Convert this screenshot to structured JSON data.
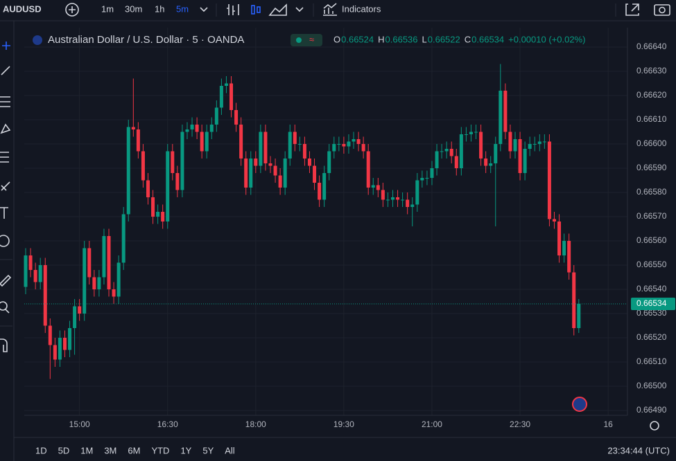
{
  "toolbar": {
    "symbol": "AUDUSD",
    "intervals": [
      "1m",
      "30m",
      "1h",
      "5m"
    ],
    "indicators": "Indicators"
  },
  "chart_data": {
    "type": "candlestick",
    "title": "Australian Dollar / U.S. Dollar · 5 · OANDA",
    "ohlc_legend": [
      {
        "key": "O",
        "value": "0.66524"
      },
      {
        "key": "H",
        "value": "0.66536"
      },
      {
        "key": "L",
        "value": "0.66522"
      },
      {
        "key": "C",
        "value": "0.66534"
      }
    ],
    "change": "+0.00010 (+0.02%)",
    "last_price": {
      "value": 0.66534,
      "label": "0.66534"
    },
    "up_color": "#089981",
    "down_color": "#f23645",
    "grid": true,
    "x": [
      "14:05",
      "14:10",
      "14:15",
      "14:20",
      "14:25",
      "14:30",
      "14:35",
      "14:40",
      "14:45",
      "14:50",
      "14:55",
      "15:00",
      "15:05",
      "15:10",
      "15:15",
      "15:20",
      "15:25",
      "15:30",
      "15:35",
      "15:40",
      "15:45",
      "15:50",
      "15:55",
      "16:00",
      "16:05",
      "16:10",
      "16:15",
      "16:20",
      "16:25",
      "16:30",
      "16:35",
      "16:40",
      "16:45",
      "16:50",
      "16:55",
      "17:00",
      "17:05",
      "17:10",
      "17:15",
      "17:20",
      "17:25",
      "17:30",
      "17:35",
      "17:40",
      "17:45",
      "17:50",
      "17:55",
      "18:00",
      "18:05",
      "18:10",
      "18:15",
      "18:20",
      "18:25",
      "18:30",
      "18:35",
      "18:40",
      "18:45",
      "18:50",
      "18:55",
      "19:00",
      "19:05",
      "19:10",
      "19:15",
      "19:20",
      "19:25",
      "19:30",
      "19:35",
      "19:40",
      "19:45",
      "19:50",
      "19:55",
      "20:00",
      "20:05",
      "20:10",
      "20:15",
      "20:20",
      "20:25",
      "20:30",
      "20:35",
      "20:40",
      "20:45",
      "20:50",
      "20:55",
      "21:00",
      "21:05",
      "21:10",
      "21:15",
      "21:20",
      "21:25",
      "21:30",
      "21:35",
      "21:40",
      "21:45",
      "21:50",
      "21:55",
      "22:00",
      "22:05",
      "22:10",
      "22:15",
      "22:20",
      "22:25",
      "22:30",
      "22:35",
      "22:40",
      "22:45",
      "22:50",
      "22:55",
      "23:00",
      "23:05",
      "23:10",
      "23:15",
      "23:20",
      "23:25",
      "23:30"
    ],
    "open": [
      0.66541,
      0.66554,
      0.66548,
      0.66543,
      0.6655,
      0.66525,
      0.66517,
      0.66511,
      0.6652,
      0.66515,
      0.66524,
      0.66533,
      0.6653,
      0.66557,
      0.66545,
      0.6654,
      0.66545,
      0.66562,
      0.6654,
      0.66537,
      0.66551,
      0.66571,
      0.66607,
      0.66606,
      0.66597,
      0.66585,
      0.66578,
      0.6657,
      0.66572,
      0.66568,
      0.66597,
      0.66588,
      0.66581,
      0.66605,
      0.66606,
      0.66608,
      0.66605,
      0.66597,
      0.66605,
      0.66608,
      0.66615,
      0.66624,
      0.66625,
      0.66614,
      0.66608,
      0.66594,
      0.66582,
      0.66594,
      0.66591,
      0.66605,
      0.66592,
      0.66591,
      0.66587,
      0.66582,
      0.66594,
      0.66605,
      0.666,
      0.666,
      0.66594,
      0.66591,
      0.66584,
      0.66577,
      0.66588,
      0.66597,
      0.666,
      0.666,
      0.66599,
      0.66601,
      0.66602,
      0.666,
      0.66597,
      0.66582,
      0.66583,
      0.66581,
      0.66577,
      0.66577,
      0.66578,
      0.66577,
      0.66577,
      0.66574,
      0.66575,
      0.66585,
      0.66586,
      0.66586,
      0.6659,
      0.66597,
      0.66597,
      0.66598,
      0.66595,
      0.6659,
      0.66604,
      0.66604,
      0.66605,
      0.66605,
      0.66594,
      0.66591,
      0.66592,
      0.666,
      0.66622,
      0.66605,
      0.66597,
      0.66602,
      0.66588,
      0.66598,
      0.666,
      0.666,
      0.66601,
      0.66601,
      0.66569,
      0.66568,
      0.66554,
      0.6656,
      0.66547,
      0.66524
    ],
    "high": [
      0.66557,
      0.66557,
      0.66551,
      0.66553,
      0.66553,
      0.66528,
      0.6652,
      0.66523,
      0.66523,
      0.66527,
      0.66536,
      0.66536,
      0.6656,
      0.6656,
      0.66548,
      0.66548,
      0.66565,
      0.66565,
      0.66543,
      0.66554,
      0.66574,
      0.6661,
      0.66627,
      0.66609,
      0.666,
      0.66588,
      0.66581,
      0.66575,
      0.66575,
      0.666,
      0.666,
      0.66591,
      0.66608,
      0.66609,
      0.66611,
      0.66611,
      0.66608,
      0.66608,
      0.66611,
      0.66618,
      0.66627,
      0.66628,
      0.66628,
      0.66617,
      0.66611,
      0.66597,
      0.66597,
      0.66597,
      0.66608,
      0.66608,
      0.66595,
      0.66594,
      0.6659,
      0.66597,
      0.66608,
      0.66608,
      0.66603,
      0.66603,
      0.66597,
      0.66594,
      0.66587,
      0.66591,
      0.666,
      0.66603,
      0.66603,
      0.66603,
      0.66604,
      0.66605,
      0.66605,
      0.66603,
      0.666,
      0.66586,
      0.66586,
      0.66584,
      0.6658,
      0.66581,
      0.66581,
      0.6658,
      0.6658,
      0.66578,
      0.66588,
      0.66589,
      0.66589,
      0.66593,
      0.666,
      0.666,
      0.66601,
      0.66601,
      0.66598,
      0.66607,
      0.66607,
      0.66608,
      0.66608,
      0.66608,
      0.66597,
      0.66595,
      0.66603,
      0.66633,
      0.66625,
      0.66608,
      0.66605,
      0.66605,
      0.66601,
      0.66603,
      0.66603,
      0.66604,
      0.66604,
      0.66604,
      0.66572,
      0.66571,
      0.66563,
      0.66563,
      0.6655,
      0.66536
    ],
    "low": [
      0.66538,
      0.66545,
      0.6654,
      0.6654,
      0.66522,
      0.66503,
      0.66508,
      0.66508,
      0.66512,
      0.66512,
      0.66513,
      0.66527,
      0.66527,
      0.66542,
      0.66537,
      0.66537,
      0.66542,
      0.66537,
      0.66534,
      0.66534,
      0.66548,
      0.66568,
      0.66603,
      0.66594,
      0.66582,
      0.66575,
      0.66567,
      0.66567,
      0.66565,
      0.66565,
      0.66585,
      0.66578,
      0.66578,
      0.66602,
      0.66603,
      0.66602,
      0.66594,
      0.66594,
      0.66602,
      0.66605,
      0.66612,
      0.66621,
      0.66611,
      0.66605,
      0.66591,
      0.66579,
      0.66579,
      0.66588,
      0.66588,
      0.66589,
      0.66588,
      0.66584,
      0.66579,
      0.66579,
      0.66591,
      0.66597,
      0.66597,
      0.66591,
      0.66588,
      0.66581,
      0.66574,
      0.66574,
      0.66585,
      0.66594,
      0.66597,
      0.66596,
      0.66596,
      0.66598,
      0.66597,
      0.66594,
      0.66579,
      0.66579,
      0.66578,
      0.66574,
      0.66574,
      0.66574,
      0.66574,
      0.66574,
      0.66571,
      0.66566,
      0.66572,
      0.66582,
      0.66583,
      0.66583,
      0.66587,
      0.66594,
      0.66594,
      0.66592,
      0.66587,
      0.66587,
      0.66601,
      0.66601,
      0.66602,
      0.66591,
      0.66588,
      0.66588,
      0.66566,
      0.66597,
      0.66602,
      0.66594,
      0.66594,
      0.66585,
      0.66585,
      0.66595,
      0.66597,
      0.66597,
      0.66598,
      0.66566,
      0.66565,
      0.66551,
      0.66551,
      0.66544,
      0.66521,
      0.66522
    ],
    "close": [
      0.66554,
      0.66548,
      0.66543,
      0.6655,
      0.66525,
      0.66517,
      0.66511,
      0.6652,
      0.66515,
      0.66524,
      0.66533,
      0.6653,
      0.66557,
      0.66545,
      0.6654,
      0.66545,
      0.66562,
      0.6654,
      0.66537,
      0.66551,
      0.66571,
      0.66607,
      0.66606,
      0.66597,
      0.66585,
      0.66578,
      0.6657,
      0.66572,
      0.66568,
      0.66597,
      0.66588,
      0.66581,
      0.66605,
      0.66606,
      0.66608,
      0.66605,
      0.66597,
      0.66605,
      0.66608,
      0.66615,
      0.66624,
      0.66625,
      0.66614,
      0.66608,
      0.66594,
      0.66582,
      0.66594,
      0.66591,
      0.66605,
      0.66592,
      0.66591,
      0.66587,
      0.66582,
      0.66594,
      0.66605,
      0.666,
      0.666,
      0.66594,
      0.66591,
      0.66584,
      0.66577,
      0.66588,
      0.66597,
      0.666,
      0.666,
      0.66599,
      0.66601,
      0.66602,
      0.666,
      0.66597,
      0.66582,
      0.66583,
      0.66581,
      0.66577,
      0.66577,
      0.66578,
      0.66577,
      0.66577,
      0.66574,
      0.66575,
      0.66585,
      0.66586,
      0.66586,
      0.6659,
      0.66597,
      0.66597,
      0.66598,
      0.66595,
      0.6659,
      0.66604,
      0.66604,
      0.66605,
      0.66605,
      0.66594,
      0.66591,
      0.66592,
      0.666,
      0.66622,
      0.66605,
      0.66597,
      0.66602,
      0.66588,
      0.66598,
      0.666,
      0.666,
      0.66601,
      0.66601,
      0.66569,
      0.66568,
      0.66554,
      0.6656,
      0.66547,
      0.66524,
      0.66534
    ],
    "ylim": [
      0.66488,
      0.66648
    ],
    "yticks": [
      {
        "value": 0.6649,
        "label": "0.66490"
      },
      {
        "value": 0.665,
        "label": "0.66500"
      },
      {
        "value": 0.6651,
        "label": "0.66510"
      },
      {
        "value": 0.6652,
        "label": "0.66520"
      },
      {
        "value": 0.6653,
        "label": "0.66530"
      },
      {
        "value": 0.6654,
        "label": "0.66540"
      },
      {
        "value": 0.6655,
        "label": "0.66550"
      },
      {
        "value": 0.6656,
        "label": "0.66560"
      },
      {
        "value": 0.6657,
        "label": "0.66570"
      },
      {
        "value": 0.6658,
        "label": "0.66580"
      },
      {
        "value": 0.6659,
        "label": "0.66590"
      },
      {
        "value": 0.666,
        "label": "0.66600"
      },
      {
        "value": 0.6661,
        "label": "0.66610"
      },
      {
        "value": 0.6662,
        "label": "0.66620"
      },
      {
        "value": 0.6663,
        "label": "0.66630"
      },
      {
        "value": 0.6664,
        "label": "0.66640"
      }
    ],
    "xticks": [
      "15:00",
      "16:30",
      "18:00",
      "19:30",
      "21:00",
      "22:30",
      {
        "value": "00:00",
        "label": "16"
      }
    ]
  },
  "bottom_bar": {
    "ranges": [
      "1D",
      "5D",
      "1M",
      "3M",
      "6M",
      "YTD",
      "1Y",
      "5Y",
      "All"
    ],
    "clock": "23:34:44 (UTC)"
  }
}
